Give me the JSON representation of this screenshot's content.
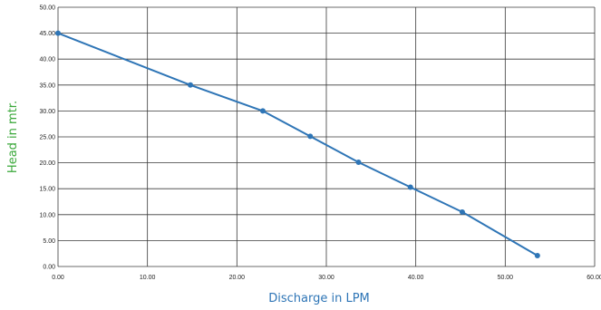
{
  "chart_data": {
    "type": "line",
    "xlabel": "Discharge in LPM",
    "ylabel": "Head in mtr.",
    "xlim": [
      0,
      60
    ],
    "ylim": [
      0,
      50
    ],
    "x_ticks": [
      "0.00",
      "10.00",
      "20.00",
      "30.00",
      "40.00",
      "50.00",
      "60.00"
    ],
    "y_ticks": [
      "0.00",
      "5.00",
      "10.00",
      "15.00",
      "20.00",
      "25.00",
      "30.00",
      "35.00",
      "40.00",
      "45.00",
      "50.00"
    ],
    "grid": true,
    "series": [
      {
        "x": [
          0,
          14.8,
          22.9,
          28.2,
          33.6,
          39.4,
          45.2,
          53.6
        ],
        "y": [
          45,
          35,
          30,
          25.1,
          20.1,
          15.3,
          10.5,
          2.1
        ],
        "color": "#2e75b6"
      }
    ],
    "colors": {
      "xlabel": "#2e75b6",
      "ylabel": "#3aa83a",
      "grid": "#3a3a3a"
    }
  }
}
